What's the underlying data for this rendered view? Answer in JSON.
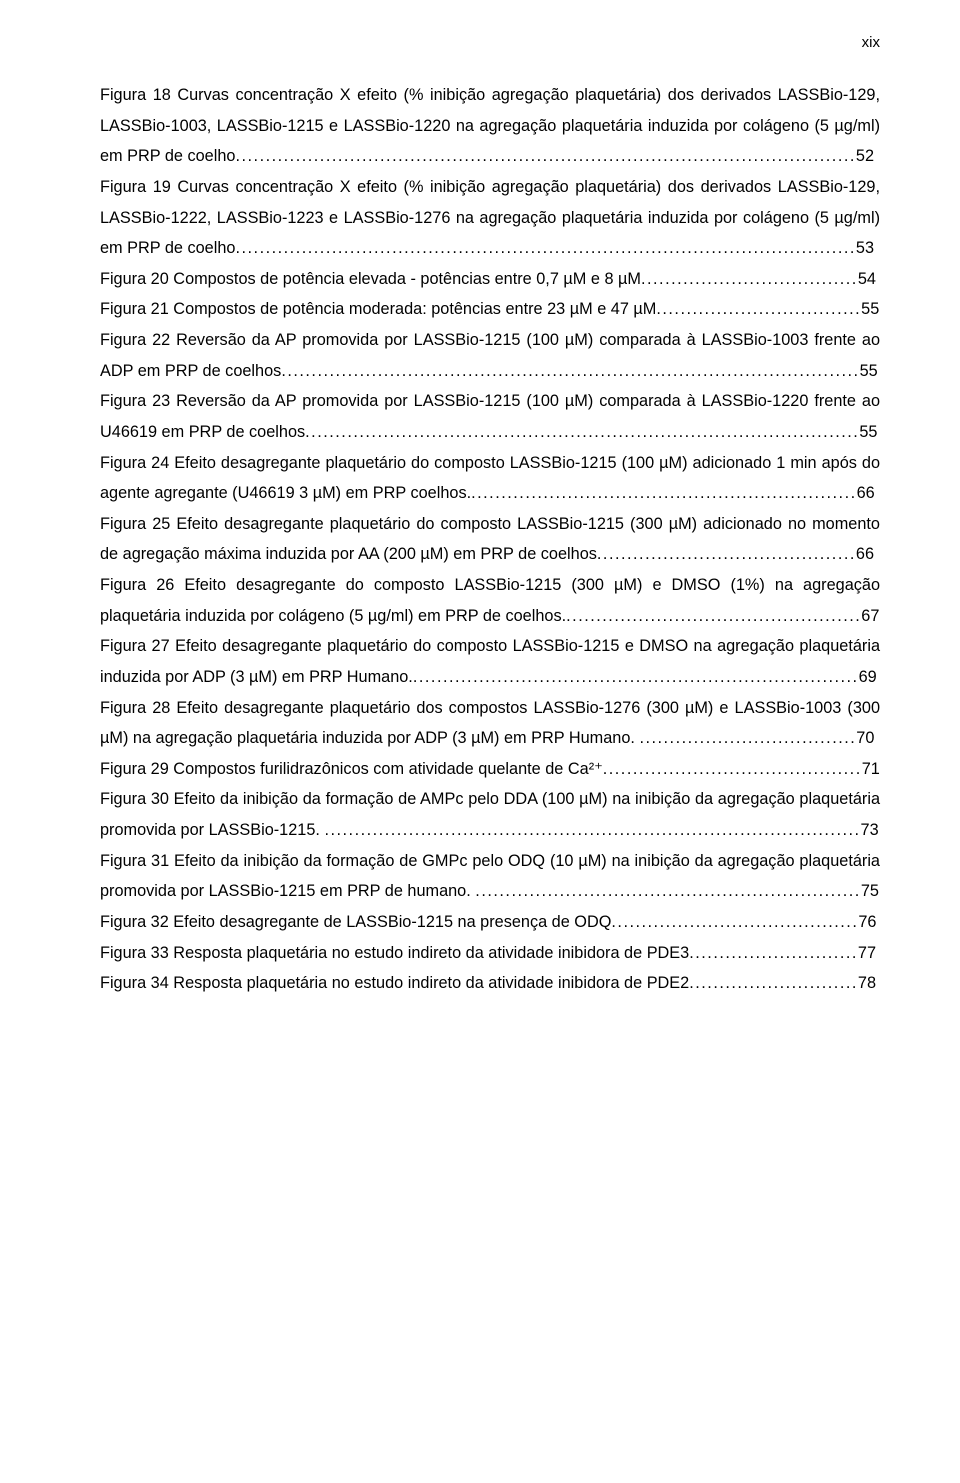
{
  "page_number_label": "xix",
  "entries": [
    {
      "text": "Figura 18  Curvas concentração X efeito (% inibição agregação plaquetária) dos derivados LASSBio-129, LASSBio-1003, LASSBio-1215 e LASSBio-1220 na agregação plaquetária induzida por colágeno (5 µg/ml) em PRP de coelho",
      "page": "52"
    },
    {
      "text": "Figura 19  Curvas concentração X efeito (% inibição agregação plaquetária) dos derivados LASSBio-129, LASSBio-1222, LASSBio-1223 e LASSBio-1276 na agregação plaquetária induzida por colágeno (5 µg/ml) em PRP de coelho",
      "page": "53"
    },
    {
      "text": "Figura 20  Compostos de potência elevada - potências entre 0,7 µM e 8 µM",
      "page": "54"
    },
    {
      "text": "Figura 21  Compostos de potência moderada: potências entre 23 µM e 47 µM",
      "page": "55"
    },
    {
      "text": "Figura 22  Reversão da AP promovida por LASSBio-1215 (100 µM) comparada à LASSBio-1003 frente ao ADP em PRP de coelhos",
      "page": "55"
    },
    {
      "text": "Figura 23  Reversão da AP promovida por LASSBio-1215 (100 µM) comparada à LASSBio-1220 frente ao U46619 em PRP de coelhos",
      "page": "55"
    },
    {
      "text": "Figura 24  Efeito desagregante plaquetário do composto LASSBio-1215 (100 µM) adicionado 1 min após do agente agregante (U46619 3 µM) em PRP coelhos.",
      "page": "66"
    },
    {
      "text": "Figura 25 Efeito desagregante plaquetário do composto LASSBio-1215 (300 µM) adicionado no momento de agregação máxima induzida por AA (200 µM) em PRP de coelhos",
      "page": "66"
    },
    {
      "text": "Figura 26  Efeito desagregante do composto LASSBio-1215 (300 µM) e DMSO (1%) na agregação plaquetária induzida por colágeno (5 µg/ml) em PRP de coelhos.",
      "page": "67"
    },
    {
      "text": "Figura 27  Efeito desagregante plaquetário do composto LASSBio-1215 e DMSO na agregação plaquetária induzida por ADP (3 µM) em PRP Humano.",
      "page": "69"
    },
    {
      "text": "Figura 28  Efeito desagregante plaquetário dos compostos LASSBio-1276 (300 µM) e LASSBio-1003 (300 µM) na agregação plaquetária induzida por ADP (3 µM) em PRP Humano. ",
      "page": "70"
    },
    {
      "text": "Figura 29 Compostos furilidrazônicos com atividade quelante de Ca²⁺",
      "page": "71"
    },
    {
      "text": "Figura 30 Efeito da inibição da formação de AMPc pelo DDA (100 µM)  na inibição da agregação plaquetária promovida por LASSBio-1215.  ",
      "page": "73"
    },
    {
      "text": "Figura 31  Efeito da inibição da formação de GMPc pelo ODQ (10 µM)  na inibição da agregação plaquetária promovida por LASSBio-1215 em PRP de humano. ",
      "page": "75"
    },
    {
      "text": "Figura 32  Efeito desagregante de LASSBio-1215 na presença de ODQ",
      "page": "76"
    },
    {
      "text": "Figura 33  Resposta plaquetária no estudo indireto da atividade inibidora de PDE3",
      "page": "77"
    },
    {
      "text": "Figura 34  Resposta plaquetária no estudo indireto da atividade inibidora de PDE2",
      "page": "78"
    }
  ]
}
